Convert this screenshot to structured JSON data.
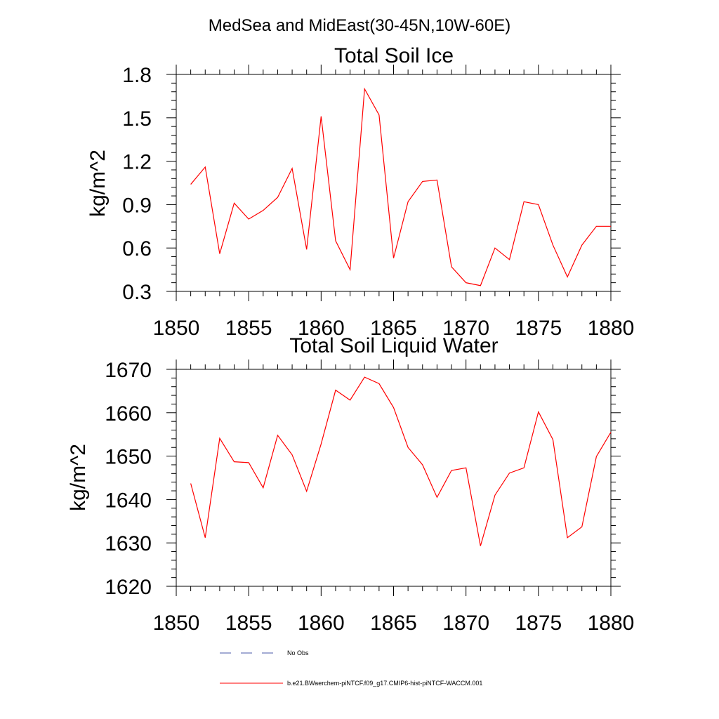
{
  "figure": {
    "main_title": "MedSea and MidEast(30-45N,10W-60E)"
  },
  "chart_data": [
    {
      "type": "line",
      "title": "Total Soil Ice",
      "xlabel": "",
      "ylabel": "kg/m^2",
      "xlim": [
        1850,
        1880
      ],
      "ylim": [
        0.3,
        1.8
      ],
      "x_ticks": [
        1850,
        1855,
        1860,
        1865,
        1870,
        1875,
        1880
      ],
      "x_tick_labels": [
        "1850",
        "1855",
        "1860",
        "1865",
        "1870",
        "1875",
        "1880"
      ],
      "y_ticks": [
        0.3,
        0.6,
        0.9,
        1.2,
        1.5,
        1.8
      ],
      "y_tick_labels": [
        "0.3",
        "0.6",
        "0.9",
        "1.2",
        "1.5",
        "1.8"
      ],
      "x": [
        1851,
        1852,
        1853,
        1854,
        1855,
        1856,
        1857,
        1858,
        1859,
        1860,
        1861,
        1862,
        1863,
        1864,
        1865,
        1866,
        1867,
        1868,
        1869,
        1870,
        1871,
        1872,
        1873,
        1874,
        1875,
        1876,
        1877,
        1878,
        1879,
        1880
      ],
      "series": [
        {
          "name": "b.e21.BWaerchem-piNTCF.f09_g17.CMIP6-hist-piNTCF-WACCM.001",
          "color": "#ff0000",
          "values": [
            1.04,
            1.16,
            0.56,
            0.91,
            0.8,
            0.86,
            0.95,
            1.15,
            0.59,
            1.51,
            0.65,
            0.45,
            1.7,
            1.52,
            0.53,
            0.92,
            1.06,
            1.07,
            0.47,
            0.36,
            0.34,
            0.6,
            0.52,
            0.92,
            0.9,
            0.62,
            0.4,
            0.62,
            0.75,
            0.75
          ]
        }
      ],
      "grid": false
    },
    {
      "type": "line",
      "title": "Total Soil Liquid Water",
      "xlabel": "",
      "ylabel": "kg/m^2",
      "xlim": [
        1850,
        1880
      ],
      "ylim": [
        1620,
        1670
      ],
      "x_ticks": [
        1850,
        1855,
        1860,
        1865,
        1870,
        1875,
        1880
      ],
      "x_tick_labels": [
        "1850",
        "1855",
        "1860",
        "1865",
        "1870",
        "1875",
        "1880"
      ],
      "y_ticks": [
        1620,
        1630,
        1640,
        1650,
        1660,
        1670
      ],
      "y_tick_labels": [
        "1620",
        "1630",
        "1640",
        "1650",
        "1660",
        "1670"
      ],
      "x": [
        1851,
        1852,
        1853,
        1854,
        1855,
        1856,
        1857,
        1858,
        1859,
        1860,
        1861,
        1862,
        1863,
        1864,
        1865,
        1866,
        1867,
        1868,
        1869,
        1870,
        1871,
        1872,
        1873,
        1874,
        1875,
        1876,
        1877,
        1878,
        1879,
        1880
      ],
      "series": [
        {
          "name": "b.e21.BWaerchem-piNTCF.f09_g17.CMIP6-hist-piNTCF-WACCM.001",
          "color": "#ff0000",
          "values": [
            1643.7,
            1631.2,
            1654.1,
            1648.7,
            1648.5,
            1642.7,
            1654.8,
            1650.3,
            1641.9,
            1652.8,
            1665.2,
            1662.9,
            1668.2,
            1666.7,
            1661.2,
            1652.0,
            1648.0,
            1640.5,
            1646.7,
            1647.3,
            1629.3,
            1641.0,
            1646.1,
            1647.3,
            1660.2,
            1653.8,
            1631.2,
            1633.7,
            1649.9,
            1655.5
          ]
        }
      ],
      "grid": false
    }
  ],
  "legend": {
    "placement": "bottom",
    "items": [
      {
        "label": "No Obs",
        "color": "#4a5aa8",
        "style": "dashed"
      },
      {
        "label": "b.e21.BWaerchem-piNTCF.f09_g17.CMIP6-hist-piNTCF-WACCM.001",
        "color": "#ff0000",
        "style": "solid"
      }
    ]
  }
}
